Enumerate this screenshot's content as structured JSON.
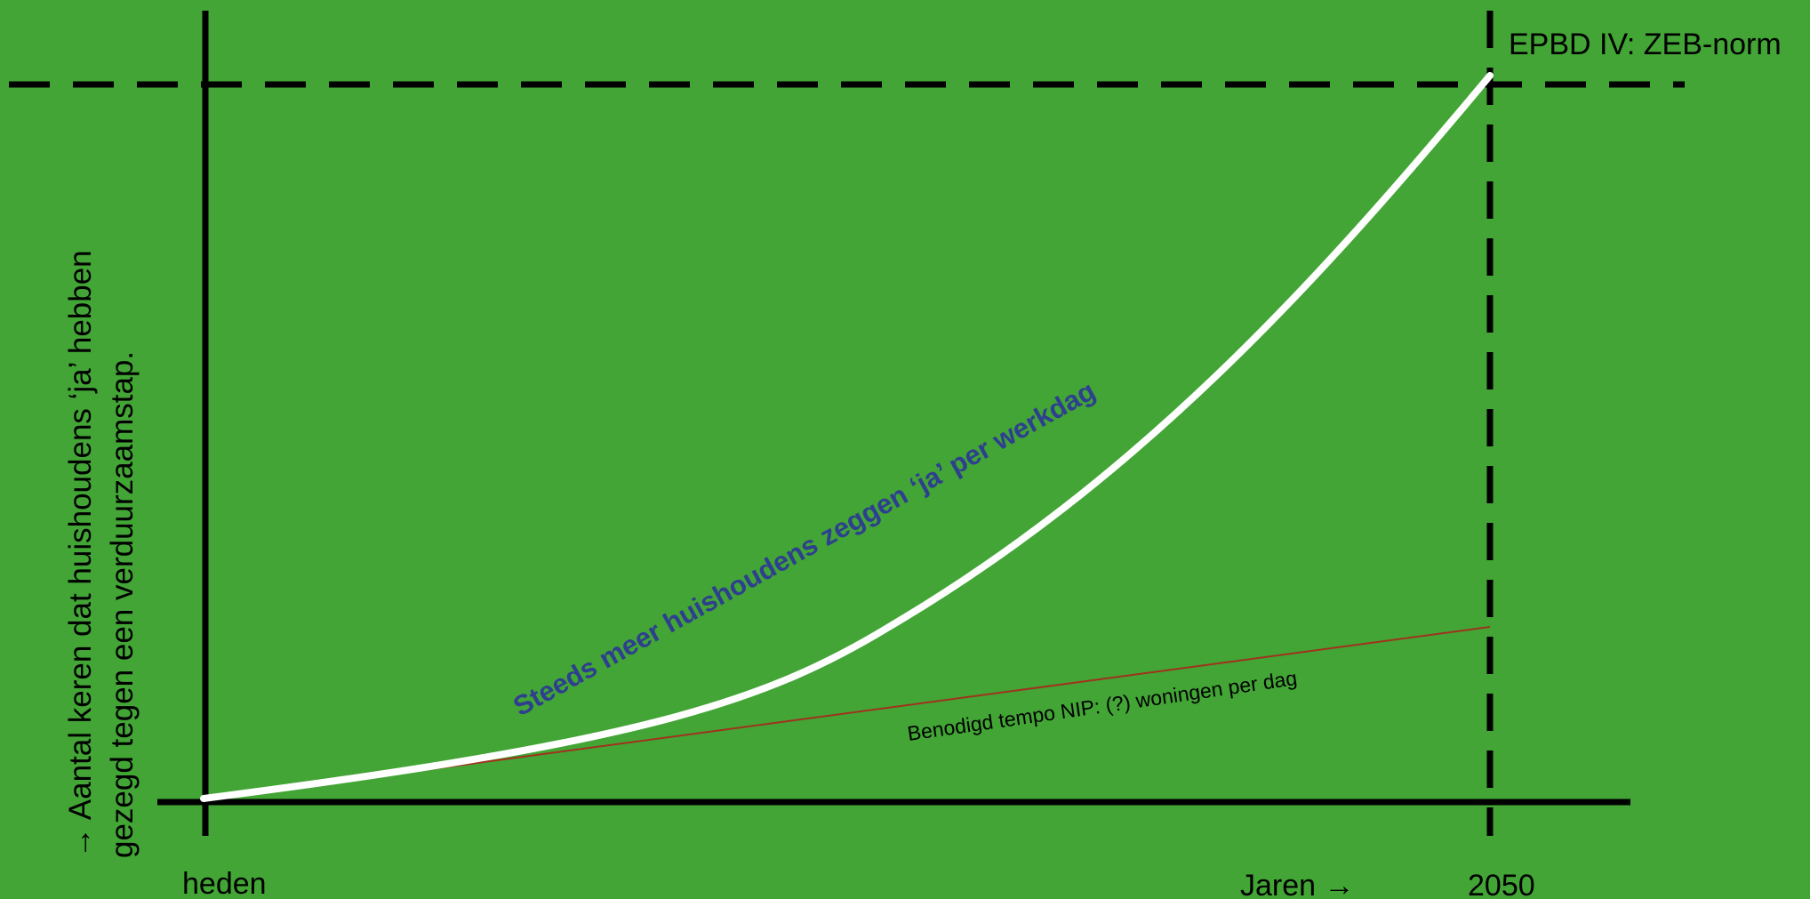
{
  "colors": {
    "background": "#42a535",
    "axes": "#000000",
    "main_curve": "#ffffff",
    "main_curve_label": "#2e3f8f",
    "required_line": "#a0321e",
    "text": "#000000"
  },
  "labels": {
    "y_axis_line1": "→ Aantal  keren dat huishoudens ‘ja’ hebben",
    "y_axis_line2": "gezegd tegen een verduurzaamstap.",
    "x_start": "heden",
    "x_axis": "Jaren →",
    "x_end": "2050",
    "target_norm": "EPBD IV: ZEB-norm",
    "main_curve": "Steeds meer huishoudens zeggen ‘ja’ per werkdag",
    "required_line": "Benodigd tempo NIP: (?) woningen per dag"
  }
}
